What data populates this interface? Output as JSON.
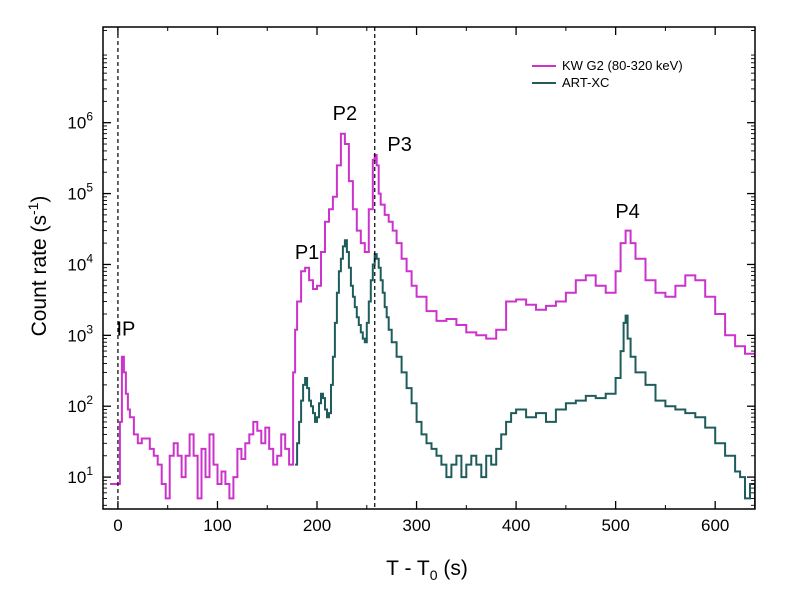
{
  "chart_data": {
    "type": "line",
    "xlabel": "T - T",
    "xlabel_sub": "0",
    "xlabel_unit": " (s)",
    "ylabel": "Count rate (s",
    "ylabel_sup": "-1",
    "ylabel_end": ")",
    "xlim": [
      -15,
      640
    ],
    "ylim_log10": [
      0.55,
      7.35
    ],
    "y_scale": "log",
    "x_ticks": [
      0,
      100,
      200,
      300,
      400,
      500,
      600
    ],
    "y_ticks": [
      {
        "exp": 1,
        "base": "10",
        "sup": "1"
      },
      {
        "exp": 2,
        "base": "10",
        "sup": "2"
      },
      {
        "exp": 3,
        "base": "10",
        "sup": "3"
      },
      {
        "exp": 4,
        "base": "10",
        "sup": "4"
      },
      {
        "exp": 5,
        "base": "10",
        "sup": "5"
      },
      {
        "exp": 6,
        "base": "10",
        "sup": "6"
      }
    ],
    "vlines": [
      0,
      258
    ],
    "grid": false,
    "legend_position": "top-right",
    "annotations": [
      {
        "text": "IP",
        "x": 8,
        "y": 1000
      },
      {
        "text": "P1",
        "x": 190,
        "y": 12000
      },
      {
        "text": "P2",
        "x": 228,
        "y": 1100000
      },
      {
        "text": "P3",
        "x": 283,
        "y": 400000
      },
      {
        "text": "P4",
        "x": 512,
        "y": 45000
      }
    ],
    "series": [
      {
        "name": "KW G2 (80-320 keV)",
        "color": "#cc33cc",
        "x": [
          -8,
          -2,
          2,
          4,
          6,
          8,
          10,
          12,
          16,
          20,
          24,
          28,
          32,
          36,
          40,
          44,
          48,
          52,
          56,
          60,
          64,
          68,
          72,
          76,
          80,
          84,
          88,
          92,
          96,
          100,
          104,
          108,
          112,
          116,
          120,
          124,
          128,
          132,
          136,
          140,
          144,
          148,
          152,
          156,
          160,
          164,
          168,
          172,
          176,
          178,
          180,
          184,
          188,
          192,
          196,
          200,
          204,
          208,
          212,
          216,
          220,
          224,
          228,
          232,
          236,
          240,
          244,
          248,
          252,
          256,
          258,
          260,
          262,
          264,
          268,
          272,
          276,
          280,
          285,
          290,
          295,
          300,
          310,
          320,
          330,
          340,
          350,
          360,
          370,
          380,
          390,
          400,
          410,
          420,
          430,
          440,
          450,
          460,
          470,
          480,
          490,
          500,
          505,
          510,
          515,
          520,
          530,
          540,
          550,
          560,
          570,
          580,
          590,
          600,
          610,
          620,
          630,
          640
        ],
        "y": [
          8,
          8,
          60,
          500,
          300,
          150,
          90,
          70,
          40,
          30,
          35,
          35,
          25,
          20,
          15,
          8,
          5,
          20,
          30,
          20,
          10,
          20,
          40,
          20,
          5,
          25,
          10,
          40,
          15,
          8,
          12,
          8,
          5,
          10,
          25,
          18,
          30,
          40,
          60,
          45,
          30,
          50,
          25,
          15,
          20,
          40,
          25,
          15,
          300,
          1200,
          3000,
          8000,
          9000,
          6000,
          4500,
          5000,
          15000,
          40000,
          60000,
          90000,
          250000,
          700000,
          500000,
          150000,
          60000,
          30000,
          20000,
          15000,
          60000,
          300000,
          350000,
          250000,
          100000,
          70000,
          50000,
          40000,
          30000,
          20000,
          12000,
          8000,
          5000,
          3500,
          2200,
          1600,
          1700,
          1400,
          1100,
          1000,
          900,
          1200,
          3000,
          3200,
          2700,
          2300,
          2600,
          3000,
          4000,
          6000,
          7000,
          5000,
          4000,
          8000,
          20000,
          30000,
          20000,
          12000,
          6000,
          4000,
          3500,
          5000,
          7000,
          6000,
          3500,
          2000,
          1000,
          700,
          550,
          500
        ]
      },
      {
        "name": "ART-XC",
        "color": "#1f5c5c",
        "x": [
          178,
          180,
          182,
          184,
          186,
          188,
          190,
          192,
          194,
          196,
          198,
          200,
          202,
          204,
          206,
          208,
          210,
          212,
          214,
          216,
          218,
          220,
          222,
          224,
          226,
          228,
          230,
          232,
          234,
          236,
          238,
          240,
          242,
          244,
          246,
          248,
          250,
          252,
          254,
          256,
          258,
          260,
          262,
          264,
          266,
          268,
          270,
          272,
          275,
          280,
          285,
          290,
          295,
          300,
          305,
          310,
          315,
          320,
          325,
          330,
          335,
          340,
          345,
          350,
          355,
          360,
          365,
          370,
          375,
          380,
          385,
          390,
          395,
          400,
          410,
          420,
          430,
          440,
          450,
          460,
          470,
          480,
          490,
          500,
          505,
          508,
          510,
          512,
          515,
          520,
          530,
          540,
          550,
          560,
          570,
          580,
          590,
          600,
          610,
          620,
          625,
          630,
          635,
          640
        ],
        "y": [
          15,
          30,
          60,
          120,
          200,
          250,
          180,
          120,
          100,
          80,
          60,
          70,
          110,
          150,
          130,
          90,
          70,
          80,
          200,
          500,
          1500,
          4000,
          8000,
          12000,
          18000,
          22000,
          15000,
          9000,
          5000,
          3500,
          2500,
          1800,
          1400,
          1100,
          900,
          800,
          1500,
          3000,
          6000,
          10000,
          14000,
          12000,
          9000,
          6000,
          4000,
          2500,
          1800,
          1200,
          800,
          500,
          300,
          180,
          110,
          60,
          40,
          30,
          25,
          20,
          15,
          10,
          15,
          20,
          10,
          15,
          20,
          15,
          10,
          20,
          15,
          25,
          40,
          60,
          80,
          90,
          70,
          80,
          60,
          90,
          110,
          120,
          140,
          130,
          150,
          250,
          600,
          1500,
          1900,
          900,
          500,
          300,
          200,
          120,
          100,
          90,
          80,
          70,
          50,
          30,
          20,
          12,
          10,
          5,
          8,
          3
        ]
      }
    ]
  }
}
